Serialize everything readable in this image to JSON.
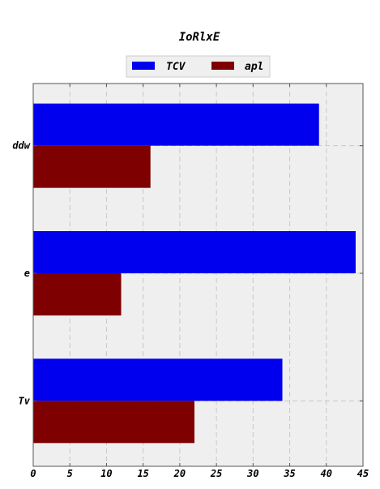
{
  "chart_data": {
    "type": "bar",
    "orientation": "horizontal",
    "title": "IoRlxE",
    "xlabel": "",
    "ylabel": "",
    "categories": [
      "ddw",
      "e",
      "Tv"
    ],
    "series": [
      {
        "name": "TCV",
        "values": [
          39,
          44,
          34
        ],
        "color": "#0000ee"
      },
      {
        "name": "apl",
        "values": [
          16,
          12,
          22
        ],
        "color": "#7f0000"
      }
    ],
    "xlim": [
      0,
      45
    ],
    "xticks": [
      0,
      5,
      10,
      15,
      20,
      25,
      30,
      35,
      40,
      45
    ],
    "grid": true,
    "legend_position": "top-center",
    "background": "#efefef"
  }
}
